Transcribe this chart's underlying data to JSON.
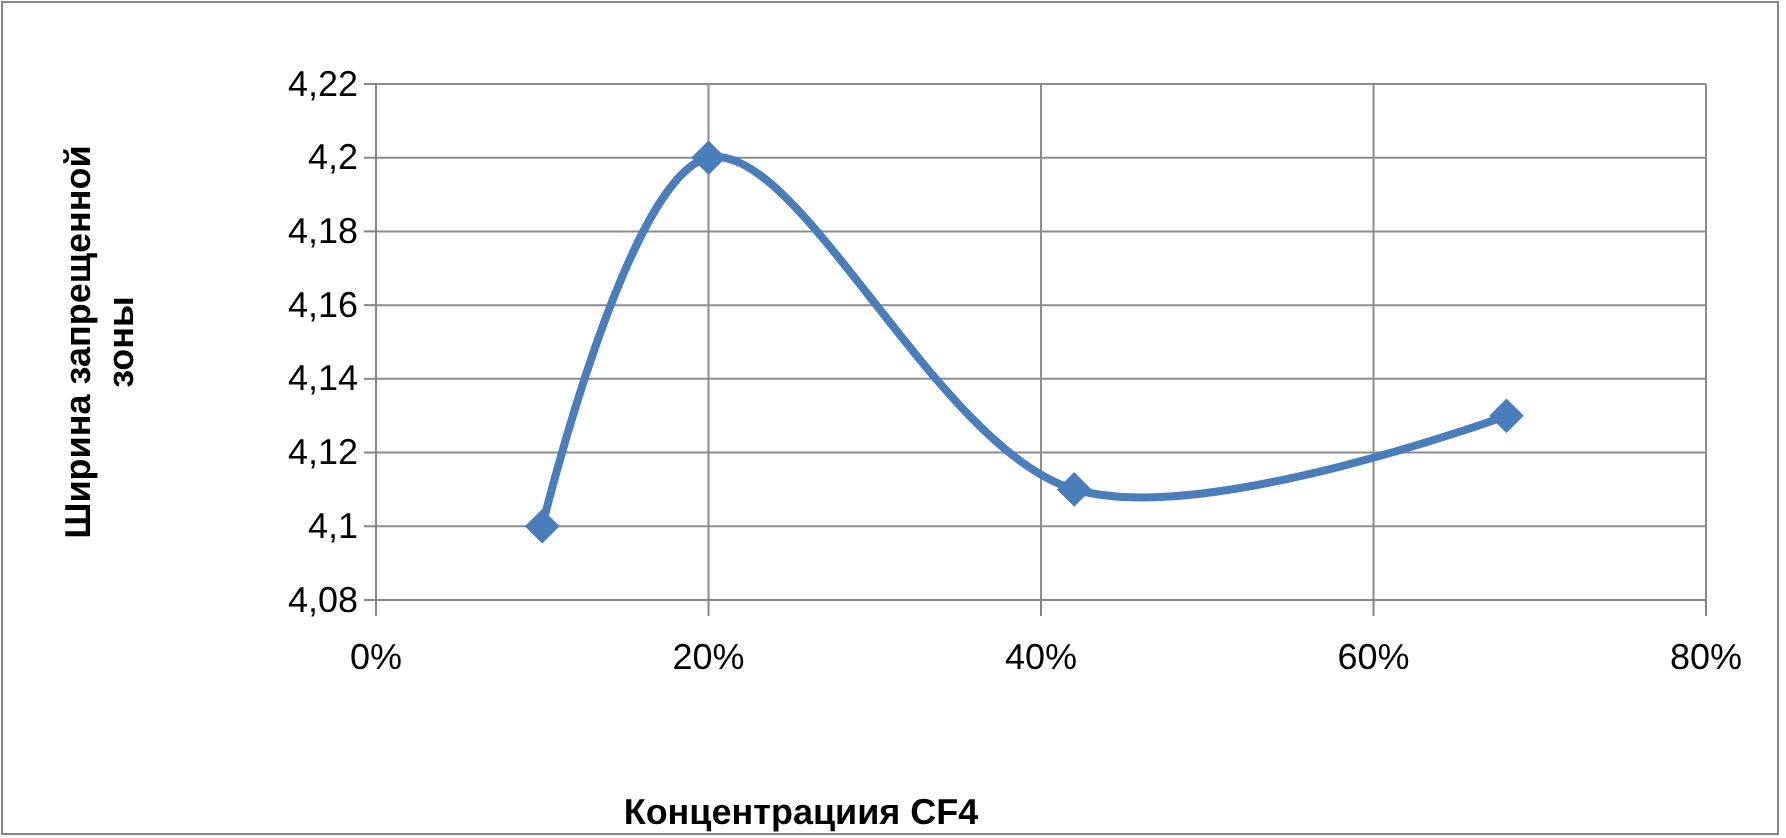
{
  "chart_data": {
    "type": "line",
    "xlabel": "Концентрациия CF4",
    "ylabel": "Ширина запрещенной зоны",
    "x": [
      10,
      20,
      42,
      68
    ],
    "series": [
      {
        "color": "#4a7ebb",
        "values": [
          4.1,
          4.2,
          4.11,
          4.13
        ]
      }
    ],
    "xlim": [
      0,
      80
    ],
    "xticks": [
      {
        "value": 0,
        "label": "0%"
      },
      {
        "value": 20,
        "label": "20%"
      },
      {
        "value": 40,
        "label": "40%"
      },
      {
        "value": 60,
        "label": "60%"
      },
      {
        "value": 80,
        "label": "80%"
      }
    ],
    "ylim": [
      4.08,
      4.22
    ],
    "yticks": [
      {
        "value": 4.08,
        "label": "4,08"
      },
      {
        "value": 4.1,
        "label": "4,1"
      },
      {
        "value": 4.12,
        "label": "4,12"
      },
      {
        "value": 4.14,
        "label": "4,14"
      },
      {
        "value": 4.16,
        "label": "4,16"
      },
      {
        "value": 4.18,
        "label": "4,18"
      },
      {
        "value": 4.2,
        "label": "4,2"
      },
      {
        "value": 4.22,
        "label": "4,22"
      }
    ],
    "grid": true,
    "marker": "diamond",
    "line_style": "solid"
  }
}
